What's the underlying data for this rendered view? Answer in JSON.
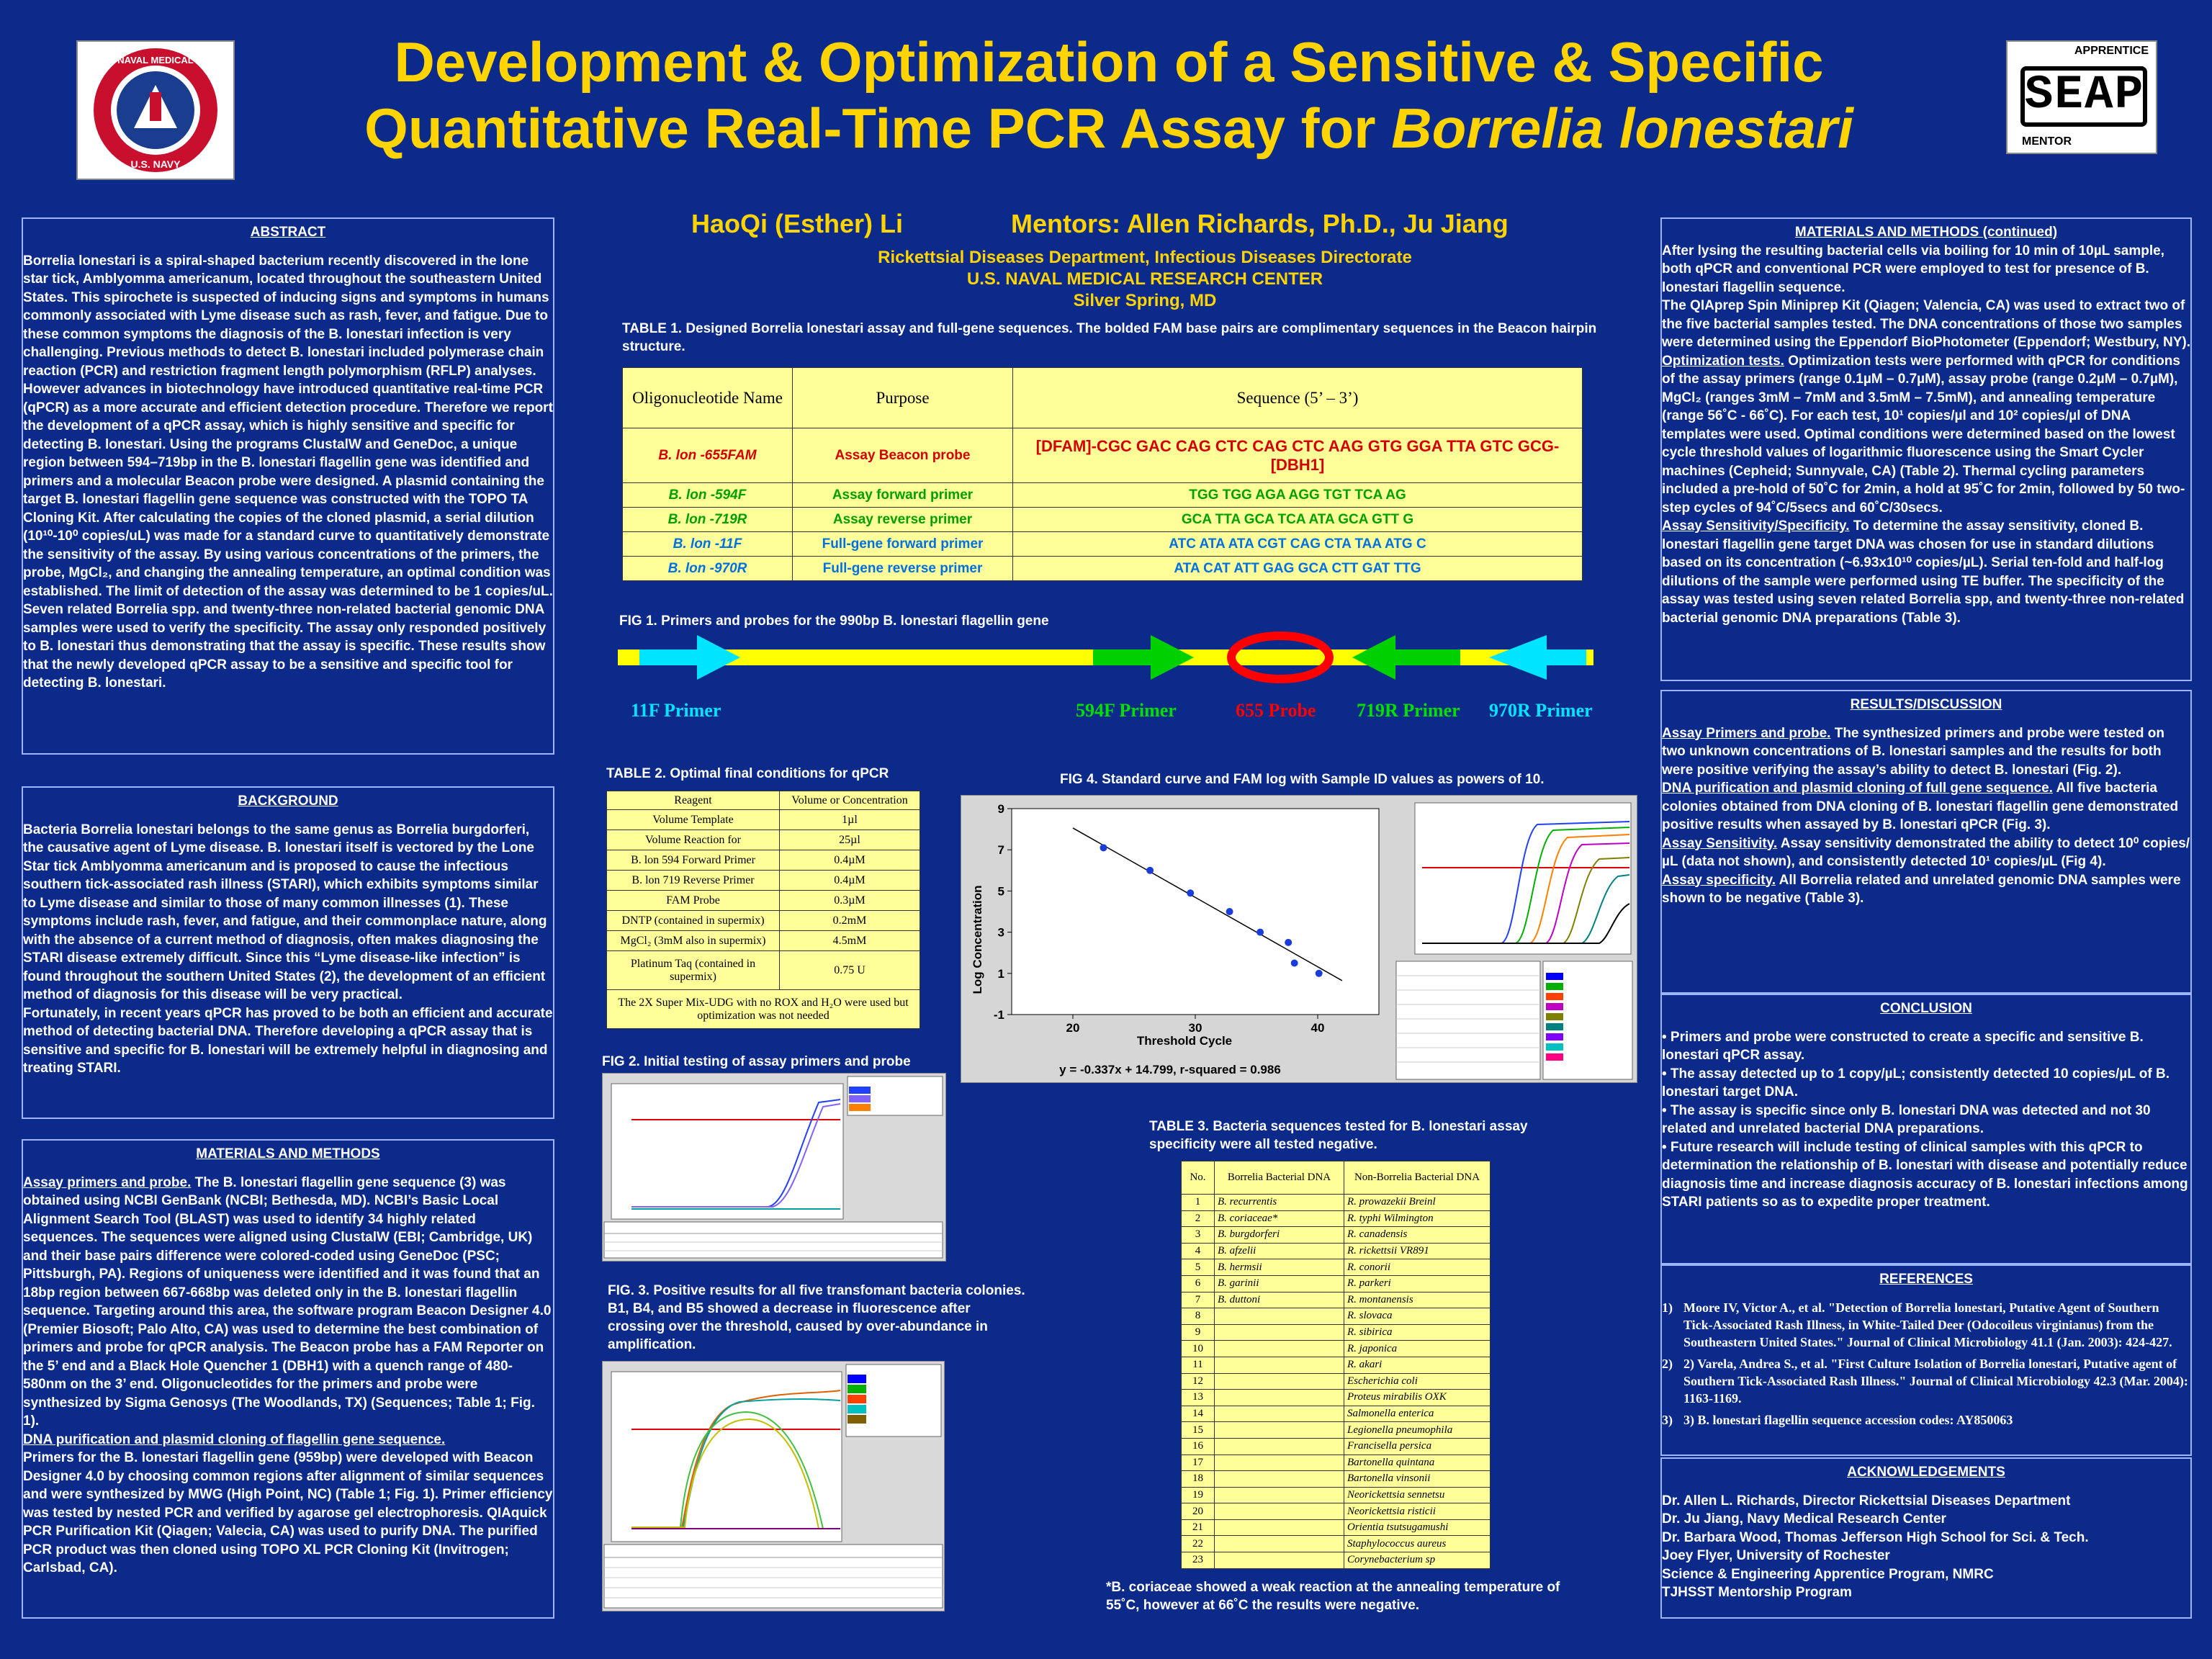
{
  "title_line1": "Development & Optimization of a Sensitive & Specific",
  "title_line2_a": "Quantitative Real-Time PCR Assay for ",
  "title_line2_b": "Borrelia lonestari",
  "logo_left_text": "NAVAL MEDICAL RESEARCH CENTER · U.S. NAVY",
  "logo_right": {
    "top": "APPRENTICE",
    "main": "SEAP",
    "bottom": "MENTOR"
  },
  "author": "HaoQi (Esther) Li",
  "mentors": "Mentors: Allen Richards, Ph.D., Ju Jiang",
  "affil": [
    "Rickettsial Diseases Department, Infectious Diseases Directorate",
    "U.S. NAVAL MEDICAL RESEARCH CENTER",
    "Silver Spring, MD"
  ],
  "abstract": {
    "heading": "ABSTRACT",
    "text": "Borrelia lonestari is a spiral-shaped bacterium recently discovered in the lone star tick, Amblyomma americanum, located throughout the southeastern United States. This spirochete is suspected of inducing signs and symptoms in humans commonly associated with Lyme disease such as rash, fever, and fatigue. Due to these common symptoms the diagnosis of the B. lonestari infection is very challenging. Previous methods to detect B. lonestari included polymerase chain reaction (PCR) and restriction fragment length polymorphism (RFLP) analyses. However advances in biotechnology have introduced quantitative real-time PCR (qPCR) as a more accurate and efficient detection procedure. Therefore we report the development of a qPCR assay, which is highly sensitive and specific for detecting B. lonestari. Using the programs ClustalW and GeneDoc, a unique region between 594–719bp in the B. lonestari flagellin gene was identified and primers and a molecular Beacon probe were designed. A plasmid containing the target B. lonestari flagellin gene sequence was constructed with the TOPO TA Cloning Kit. After calculating the copies of the cloned plasmid, a serial dilution (10¹⁰-10⁰ copies/uL) was made for a standard curve to quantitatively demonstrate the sensitivity of the assay. By using various concentrations of the primers, the probe, MgCl₂, and changing the annealing temperature, an optimal condition was established. The limit of detection of the assay was determined to be 1 copies/uL. Seven related Borrelia spp. and twenty-three non-related bacterial genomic DNA samples were used to verify the specificity. The assay only responded positively to B. lonestari thus demonstrating that the assay is specific. These results show that the newly developed qPCR assay to be a sensitive and specific tool for detecting B. lonestari."
  },
  "background": {
    "heading": "BACKGROUND",
    "text": "Bacteria Borrelia lonestari belongs to the same genus as Borrelia burgdorferi, the causative agent of Lyme disease. B. lonestari itself is vectored by the Lone Star tick Amblyomma americanum and is proposed to cause the infectious southern tick-associated rash illness (STARI), which exhibits symptoms similar to Lyme disease and similar to those of many common illnesses (1). These symptoms include rash, fever, and fatigue, and their commonplace nature, along with the absence of a current method of diagnosis, often makes diagnosing the STARI disease extremely difficult. Since this “Lyme disease-like infection” is found throughout the southern United States (2), the development of an efficient method of diagnosis for this disease will be very practical.",
    "text2": "Fortunately, in recent years qPCR has proved to be both an efficient and accurate method of detecting bacterial DNA. Therefore developing a qPCR assay that is sensitive and specific for B. lonestari will be extremely helpful in diagnosing and treating STARI."
  },
  "methods": {
    "heading": "MATERIALS AND METHODS",
    "sub1": "Assay primers and probe.",
    "text1": " The B. lonestari flagellin gene sequence (3) was obtained using NCBI GenBank (NCBI; Bethesda, MD). NCBI’s Basic Local Alignment Search Tool (BLAST) was used to identify 34 highly related sequences. The sequences were aligned using ClustalW (EBI; Cambridge, UK) and their base pairs difference were colored-coded using GeneDoc (PSC; Pittsburgh, PA). Regions of uniqueness were identified and it was found that an 18bp region between 667-668bp was deleted only in the B. lonestari flagellin sequence. Targeting around this area, the software program Beacon Designer 4.0 (Premier Biosoft; Palo Alto, CA) was used to determine the best combination of primers and probe for qPCR analysis. The Beacon probe has a FAM Reporter on the 5’ end and a Black Hole Quencher 1 (DBH1) with a quench range of 480-580nm on the 3’ end. Oligonucleotides for the primers and probe were synthesized by Sigma Genosys (The Woodlands, TX) (Sequences; Table 1; Fig. 1).",
    "sub2": "DNA purification and plasmid cloning of flagellin gene sequence.",
    "text2": "Primers for the B. lonestari flagellin gene (959bp) were developed with Beacon Designer 4.0 by choosing common regions after alignment of similar sequences and were synthesized by MWG (High Point, NC) (Table 1; Fig. 1). Primer efficiency was tested by nested PCR and verified by agarose gel electrophoresis. QIAquick PCR Purification Kit (Qiagen; Valecia, CA) was used to purify DNA. The purified PCR product was then cloned using TOPO XL PCR Cloning Kit (Invitrogen; Carlsbad, CA)."
  },
  "methods_cont": {
    "heading": "MATERIALS AND METHODS (continued)",
    "text1": "After lysing the resulting bacterial cells via boiling for 10 min of 10µL sample, both qPCR and conventional PCR were employed to test for presence of B. lonestari flagellin sequence.",
    "text2": "The QIAprep Spin Miniprep Kit (Qiagen; Valencia, CA) was used to extract two of the five bacterial samples tested. The DNA concentrations of those two samples were determined using the Eppendorf BioPhotometer (Eppendorf; Westbury, NY).",
    "sub1": "Optimization tests.",
    "text3": " Optimization tests were performed with qPCR for conditions of the assay primers (range 0.1µM – 0.7µM), assay probe (range 0.2µM – 0.7µM), MgCl₂ (ranges 3mM – 7mM and 3.5mM – 7.5mM), and annealing temperature (range 56˚C - 66˚C). For each test, 10¹ copies/µl and 10² copies/µl of DNA templates were used. Optimal conditions were determined based on the lowest cycle threshold values of logarithmic fluorescence using the Smart Cycler machines (Cepheid; Sunnyvale, CA) (Table 2). Thermal cycling parameters included a pre-hold of 50˚C for 2min, a hold at 95˚C for 2min, followed by 50 two-step cycles of 94˚C/5secs and 60˚C/30secs.",
    "sub2": "Assay Sensitivity/Specificity.",
    "text4": " To determine the assay sensitivity, cloned B. lonestari flagellin gene target DNA was chosen for use in standard dilutions based on its concentration (~6.93x10¹⁰ copies/µL). Serial ten-fold and half-log dilutions of the sample were performed using TE buffer. The specificity of the assay was tested using seven related Borrelia spp, and twenty-three non-related bacterial genomic DNA preparations (Table 3)."
  },
  "results": {
    "heading": "RESULTS/DISCUSSION",
    "items": [
      {
        "sub": "Assay Primers and probe.",
        "text": " The synthesized primers and probe were tested on two unknown concentrations of B. lonestari samples and the results for both were positive verifying the assay’s ability to detect B. lonestari (Fig. 2)."
      },
      {
        "sub": "DNA purification and plasmid cloning of full gene sequence.",
        "text": " All five bacteria colonies obtained from DNA cloning of B. lonestari flagellin gene demonstrated positive results when assayed by B. lonestari qPCR (Fig. 3)."
      },
      {
        "sub": "Assay Sensitivity.",
        "text": " Assay sensitivity demonstrated the ability to detect 10⁰ copies/µL (data not shown), and consistently detected 10¹ copies/µL (Fig 4)."
      },
      {
        "sub": "Assay specificity.",
        "text": " All Borrelia related and unrelated genomic DNA samples were shown to be negative (Table 3)."
      }
    ]
  },
  "conclusion": {
    "heading": "CONCLUSION",
    "items": [
      "•  Primers and probe were constructed to create a specific and sensitive B. lonestari qPCR assay.",
      "•  The assay detected up to 1 copy/µL; consistently detected 10 copies/µL of B. lonestari target DNA.",
      "•  The assay is specific since only B. lonestari DNA was detected and not 30 related and unrelated bacterial DNA preparations.",
      "•  Future research will include testing of clinical samples with this qPCR to determination the relationship of B. lonestari with disease and potentially reduce diagnosis time and increase diagnosis accuracy of B. lonestari infections among STARI patients so as to expedite proper treatment."
    ]
  },
  "references": {
    "heading": "REFERENCES",
    "items": [
      {
        "n": "1)",
        "text": "Moore IV, Victor A., et al. \"Detection of Borrelia lonestari, Putative Agent of Southern Tick-Associated Rash Illness, in White-Tailed Deer (Odocoileus virginianus) from the Southeastern United States.\" Journal of Clinical Microbiology 41.1 (Jan. 2003): 424-427."
      },
      {
        "n": "2)",
        "text": "2) Varela, Andrea S., et al. \"First Culture Isolation of Borrelia lonestari, Putative agent of Southern Tick-Associated Rash Illness.\" Journal of Clinical Microbiology 42.3 (Mar. 2004): 1163-1169."
      },
      {
        "n": "3)",
        "text": "3) B. lonestari flagellin sequence accession codes: AY850063"
      }
    ]
  },
  "ack": {
    "heading": "ACKNOWLEDGEMENTS",
    "items": [
      "Dr. Allen L. Richards, Director Rickettsial Diseases Department",
      "Dr. Ju Jiang, Navy Medical Research Center",
      "Dr. Barbara Wood, Thomas Jefferson High School for Sci. & Tech.",
      "Joey Flyer, University of Rochester",
      "Science & Engineering Apprentice Program, NMRC",
      "TJHSST Mentorship Program"
    ]
  },
  "table1": {
    "caption": "TABLE 1.  Designed Borrelia lonestari assay and full-gene sequences.  The bolded FAM base pairs are complimentary sequences in the Beacon hairpin structure.",
    "headers": [
      "Oligonucleotide Name",
      "Purpose",
      "Sequence (5’ – 3’)"
    ],
    "rows": [
      {
        "name": "B. lon -655FAM",
        "purpose": "Assay Beacon probe",
        "seq": "[DFAM]-CGC GAC CAG CTC CAG CTC AAG GTG GGA TTA GTC GCG-[DBH1]",
        "cls": "red"
      },
      {
        "name": "B. lon -594F",
        "purpose": "Assay forward primer",
        "seq": "TGG TGG AGA AGG TGT TCA AG",
        "cls": "grn"
      },
      {
        "name": "B. lon -719R",
        "purpose": "Assay reverse primer",
        "seq": "GCA TTA GCA TCA ATA GCA GTT G",
        "cls": "grn"
      },
      {
        "name": "B. lon -11F",
        "purpose": "Full-gene forward primer",
        "seq": "ATC ATA ATA CGT CAG CTA TAA ATG C",
        "cls": "blu"
      },
      {
        "name": "B. lon -970R",
        "purpose": "Full-gene reverse primer",
        "seq": "ATA CAT ATT GAG GCA CTT GAT TTG",
        "cls": "blu"
      }
    ]
  },
  "fig1": {
    "caption": "FIG 1.  Primers and probes for the 990bp B. lonestari flagellin gene",
    "labels": [
      "11F Primer",
      "594F Primer",
      "655 Probe",
      "719R Primer",
      "970R Primer"
    ]
  },
  "table2": {
    "caption": "TABLE 2.  Optimal final conditions for qPCR",
    "headers": [
      "Reagent",
      "Volume or Concentration"
    ],
    "rows": [
      [
        "Volume Template",
        "1µl"
      ],
      [
        "Volume Reaction for",
        "25µl"
      ],
      [
        "B. lon 594 Forward Primer",
        "0.4µM"
      ],
      [
        "B. lon 719 Reverse Primer",
        "0.4µM"
      ],
      [
        "FAM Probe",
        "0.3µM"
      ],
      [
        "DNTP (contained in supermix)",
        "0.2mM"
      ],
      [
        "MgCl₂ (3mM also in supermix)",
        "4.5mM"
      ],
      [
        "Platinum Taq (contained in supermix)",
        "0.75 U"
      ]
    ],
    "footer": "The 2X Super Mix-UDG with no ROX and H₂O were used but optimization was not needed"
  },
  "fig2": {
    "caption": "FIG 2.  Initial testing of assay primers and probe"
  },
  "fig3": {
    "caption": "FIG. 3.  Positive results for all five transfomant bacteria colonies.  B1, B4, and B5 showed a decrease in fluorescence after crossing over the threshold, caused by over-abundance in amplification."
  },
  "fig4": {
    "caption": "FIG 4.  Standard curve and FAM log with Sample ID values as powers of 10.",
    "equation": "y = -0.337x + 14.799, r-squared = 0.986"
  },
  "chart_data": {
    "type": "scatter",
    "title": "",
    "xlabel": "Threshold Cycle",
    "ylabel": "Log Concentration",
    "xlim": [
      15,
      45
    ],
    "ylim": [
      -1,
      9
    ],
    "xticks": [
      20,
      30,
      40
    ],
    "yticks": [
      -1,
      1,
      3,
      5,
      7,
      9
    ],
    "points": [
      [
        22.5,
        7.1
      ],
      [
        26.3,
        6.0
      ],
      [
        29.6,
        4.9
      ],
      [
        32.8,
        4.0
      ],
      [
        35.3,
        3.0
      ],
      [
        37.6,
        2.5
      ],
      [
        38.1,
        1.5
      ],
      [
        40.1,
        1.0
      ]
    ],
    "trendline": {
      "slope": -0.337,
      "intercept": 14.799
    }
  },
  "table3": {
    "caption": "TABLE 3.  Bacteria sequences tested for B. lonestari assay specificity were all tested negative.",
    "headers": [
      "No.",
      "Borrelia Bacterial DNA",
      "Non-Borrelia Bacterial DNA"
    ],
    "rows": [
      [
        "1",
        "B. recurrentis",
        "R. prowazekii Breinl"
      ],
      [
        "2",
        "B. coriaceae*",
        "R. typhi Wilmington"
      ],
      [
        "3",
        "B. burgdorferi",
        "R. canadensis"
      ],
      [
        "4",
        "B. afzelii",
        "R. rickettsii VR891"
      ],
      [
        "5",
        "B. hermsii",
        "R. conorii"
      ],
      [
        "6",
        "B. garinii",
        "R. parkeri"
      ],
      [
        "7",
        "B. duttoni",
        "R. montanensis"
      ],
      [
        "8",
        "",
        "R. slovaca"
      ],
      [
        "9",
        "",
        "R. sibirica"
      ],
      [
        "10",
        "",
        "R. japonica"
      ],
      [
        "11",
        "",
        "R. akari"
      ],
      [
        "12",
        "",
        "Escherichia coli"
      ],
      [
        "13",
        "",
        "Proteus mirabilis OXK"
      ],
      [
        "14",
        "",
        "Salmonella enterica"
      ],
      [
        "15",
        "",
        "Legionella pneumophila"
      ],
      [
        "16",
        "",
        "Francisella persica"
      ],
      [
        "17",
        "",
        "Bartonella quintana"
      ],
      [
        "18",
        "",
        "Bartonella vinsonii"
      ],
      [
        "19",
        "",
        "Neorickettsia sennetsu"
      ],
      [
        "20",
        "",
        "Neorickettsia risticii"
      ],
      [
        "21",
        "",
        "Orientia tsutsugamushi"
      ],
      [
        "22",
        "",
        "Staphylococcus aureus"
      ],
      [
        "23",
        "",
        "Corynebacterium sp"
      ]
    ],
    "footnote": "*B. coriaceae showed a weak reaction at the annealing temperature of 55˚C, however at 66˚C the results were negative."
  }
}
